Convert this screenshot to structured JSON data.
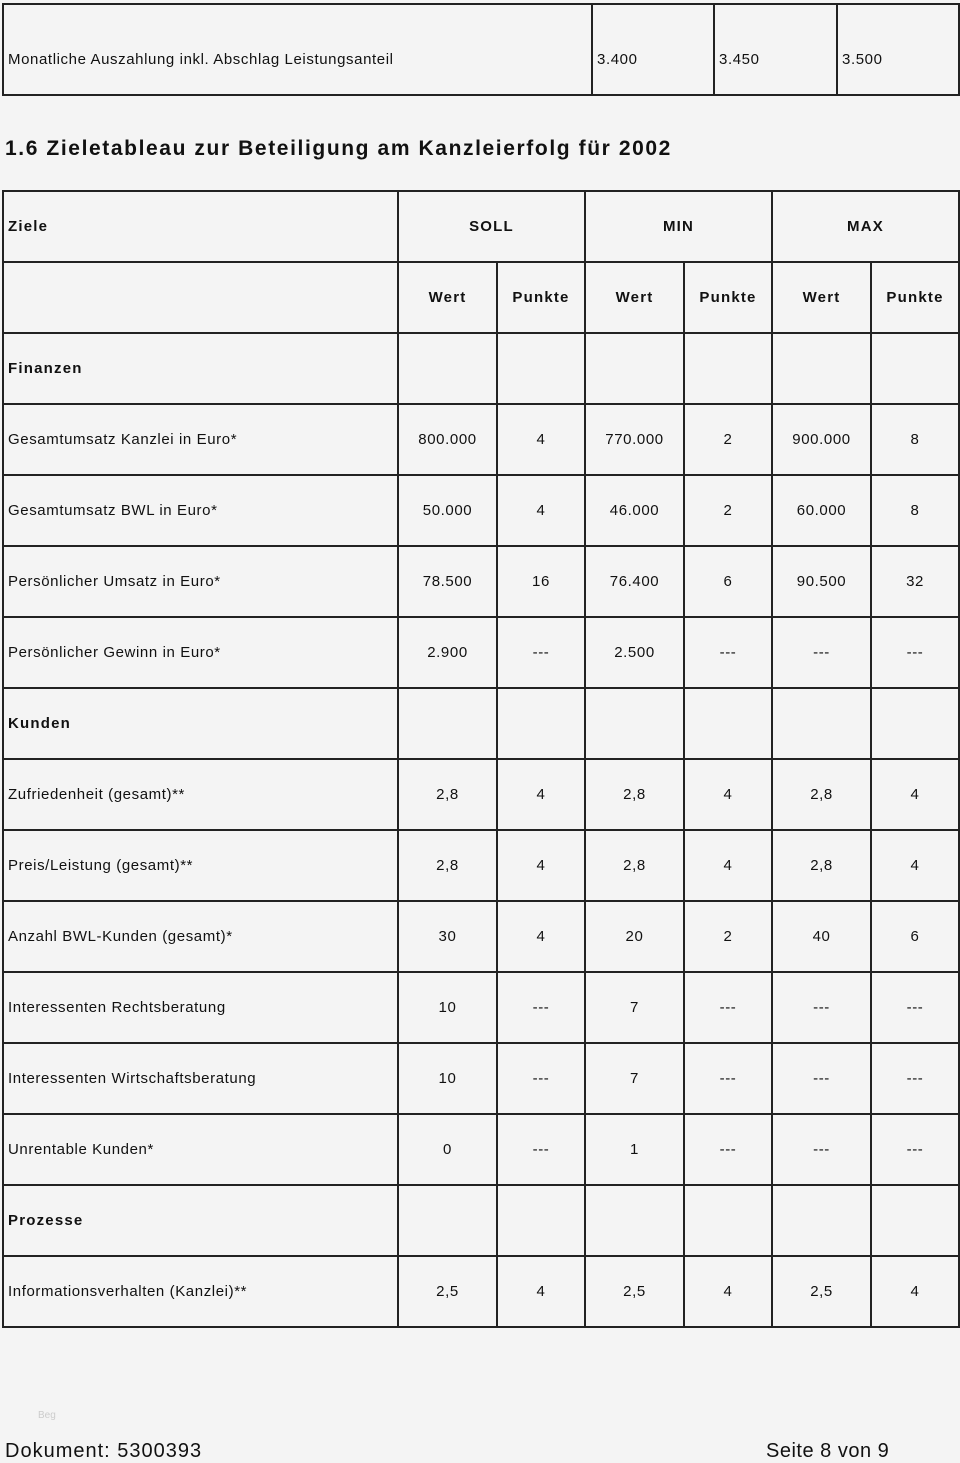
{
  "top_row": {
    "label": "Monatliche Auszahlung inkl. Abschlag Leistungsanteil",
    "values": [
      "3.400",
      "3.450",
      "3.500"
    ]
  },
  "title": "1.6 Zieletableau zur Beteiligung am Kanzleierfolg für 2002",
  "table": {
    "header": {
      "ziele": "Ziele",
      "soll": "SOLL",
      "min": "MIN",
      "max": "MAX"
    },
    "subheader": [
      "Wert",
      "Punkte",
      "Wert",
      "Punkte",
      "Wert",
      "Punkte"
    ],
    "rows": [
      {
        "label": "Finanzen",
        "section": true,
        "cells": [
          "",
          "",
          "",
          "",
          "",
          ""
        ]
      },
      {
        "label": "Gesamtumsatz Kanzlei in Euro*",
        "cells": [
          "800.000",
          "4",
          "770.000",
          "2",
          "900.000",
          "8"
        ]
      },
      {
        "label": "Gesamtumsatz BWL in Euro*",
        "cells": [
          "50.000",
          "4",
          "46.000",
          "2",
          "60.000",
          "8"
        ]
      },
      {
        "label": "Persönlicher Umsatz in Euro*",
        "cells": [
          "78.500",
          "16",
          "76.400",
          "6",
          "90.500",
          "32"
        ]
      },
      {
        "label": "Persönlicher Gewinn in Euro*",
        "cells": [
          "2.900",
          "---",
          "2.500",
          "---",
          "---",
          "---"
        ]
      },
      {
        "label": "Kunden",
        "section": true,
        "cells": [
          "",
          "",
          "",
          "",
          "",
          ""
        ]
      },
      {
        "label": "Zufriedenheit (gesamt)**",
        "cells": [
          "2,8",
          "4",
          "2,8",
          "4",
          "2,8",
          "4"
        ]
      },
      {
        "label": "Preis/Leistung (gesamt)**",
        "cells": [
          "2,8",
          "4",
          "2,8",
          "4",
          "2,8",
          "4"
        ]
      },
      {
        "label": "Anzahl BWL-Kunden (gesamt)*",
        "cells": [
          "30",
          "4",
          "20",
          "2",
          "40",
          "6"
        ]
      },
      {
        "label": "Interessenten Rechtsberatung",
        "cells": [
          "10",
          "---",
          "7",
          "---",
          "---",
          "---"
        ]
      },
      {
        "label": "Interessenten Wirtschaftsberatung",
        "cells": [
          "10",
          "---",
          "7",
          "---",
          "---",
          "---"
        ]
      },
      {
        "label": "Unrentable Kunden*",
        "cells": [
          "0",
          "---",
          "1",
          "---",
          "---",
          "---"
        ]
      },
      {
        "label": "Prozesse",
        "section": true,
        "cells": [
          "",
          "",
          "",
          "",
          "",
          ""
        ]
      },
      {
        "label": "Informationsverhalten (Kanzlei)**",
        "cells": [
          "2,5",
          "4",
          "2,5",
          "4",
          "2,5",
          "4"
        ]
      }
    ]
  },
  "faint_text": "Beg",
  "footer": {
    "document": "Dokument: 5300393",
    "page": "Seite 8 von 9"
  }
}
